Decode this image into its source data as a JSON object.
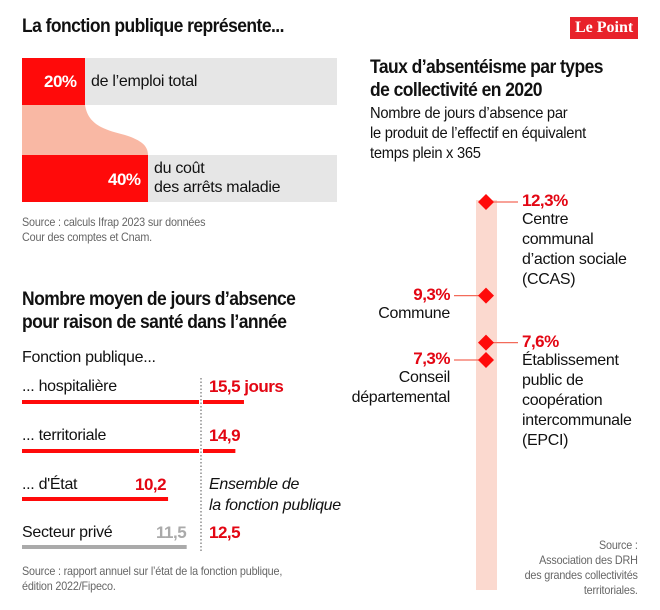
{
  "logo": "Le Point",
  "colors": {
    "accent": "#e30613",
    "accent_light": "#f7b9a8",
    "band": "#fbd9cf",
    "grey_bar": "#e6e6e6",
    "private_grey": "#aaaaaa"
  },
  "section1": {
    "title": "La fonction publique représente...",
    "rows": [
      {
        "value": "20%",
        "label": "de l’emploi total"
      },
      {
        "value": "40%",
        "label_line1": "du coût",
        "label_line2": "des arrêts maladie"
      }
    ],
    "source_line1": "Source : calculs Ifrap 2023 sur données",
    "source_line2": "Cour des comptes et Cnam."
  },
  "section2": {
    "title_line1": "Nombre moyen de jours d’absence",
    "title_line2": "pour raison de santé dans l’année",
    "group_label": "Fonction publique...",
    "ensemble_line1": "Ensemble de",
    "ensemble_line2": "la fonction publique",
    "ensemble_value": "12,5",
    "rows": [
      {
        "label": "... hospitalière",
        "value_text": "15,5 jours"
      },
      {
        "label": "... territoriale",
        "value_text": "14,9"
      },
      {
        "label": "... d'État",
        "value_text": "10,2"
      },
      {
        "label": "Secteur privé",
        "value_text": "11,5"
      }
    ],
    "source_line1": "Source : rapport annuel sur l’état de la fonction publique,",
    "source_line2": "édition 2022/Fipeco."
  },
  "section3": {
    "title_line1": "Taux d’absentéisme par types",
    "title_line2": "de collectivité en 2020",
    "subtitle_line1": "Nombre de jours d’absence par",
    "subtitle_line2": "le produit de l’effectif en équivalent",
    "subtitle_line3": "temps plein x 365",
    "source_line1": "Source :",
    "source_line2": "Association des DRH",
    "source_line3": "des grandes collectivités",
    "source_line4": "territoriales."
  },
  "chart_data": [
    {
      "type": "bar",
      "title": "La fonction publique représente...",
      "categories": [
        "de l’emploi total",
        "du coût des arrêts maladie"
      ],
      "values": [
        20,
        40
      ],
      "unit": "%",
      "xlim": [
        0,
        100
      ]
    },
    {
      "type": "bar",
      "title": "Nombre moyen de jours d’absence pour raison de santé dans l’année",
      "categories": [
        "Fonction publique hospitalière",
        "Fonction publique territoriale",
        "Fonction publique d'État",
        "Secteur privé"
      ],
      "values": [
        15.5,
        14.9,
        10.2,
        11.5
      ],
      "unit": "jours",
      "reference_line": {
        "label": "Ensemble de la fonction publique",
        "value": 12.5
      }
    },
    {
      "type": "scatter",
      "title": "Taux d’absentéisme par types de collectivité en 2020",
      "subtitle": "Nombre de jours d’absence par le produit de l’effectif en équivalent temps plein x 365",
      "unit": "%",
      "points": [
        {
          "label": "Centre communal d’action sociale (CCAS)",
          "value": 12.3,
          "value_text": "12,3%",
          "side": "right",
          "lines": [
            "Centre",
            "communal",
            "d’action sociale",
            "(CCAS)"
          ]
        },
        {
          "label": "Commune",
          "value": 9.3,
          "value_text": "9,3%",
          "side": "left",
          "lines": [
            "Commune"
          ]
        },
        {
          "label": "Établissement public de coopération intercommunale (EPCI)",
          "value": 7.6,
          "value_text": "7,6%",
          "side": "right",
          "lines": [
            "Établissement",
            "public de",
            "coopération",
            "intercommunale",
            "(EPCI)"
          ]
        },
        {
          "label": "Conseil départemental",
          "value": 7.3,
          "value_text": "7,3%",
          "side": "left",
          "lines": [
            "Conseil",
            "départemental"
          ]
        }
      ]
    }
  ]
}
